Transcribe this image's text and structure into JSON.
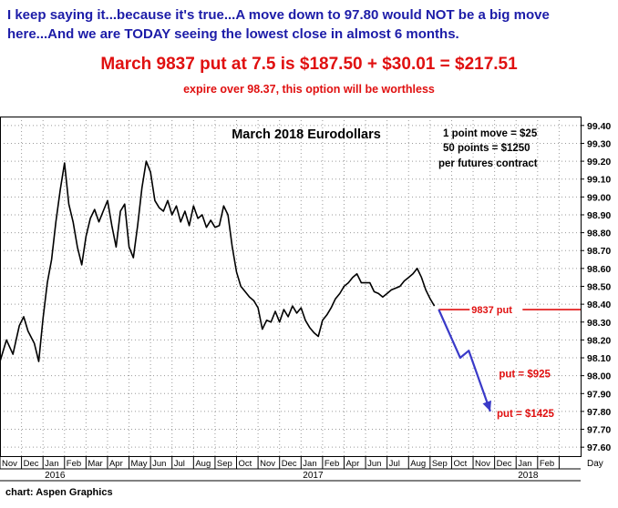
{
  "header": {
    "headline": "I keep saying it...because it's true...A move down to 97.80 would NOT be a big move here...And we are TODAY seeing the lowest close in almost 6 months.",
    "price_line": "March 9837 put at 7.5 is $187.50 + $30.01 = $217.51",
    "expire_note": "expire over 98.37, this option will be worthless"
  },
  "footer": {
    "credit": "chart: Aspen Graphics"
  },
  "colors": {
    "headline": "#1c1ca8",
    "accent_red": "#e01010",
    "projection": "#3a3ac8",
    "price": "#000000",
    "grid": "#9a9a9a"
  },
  "chart_data": {
    "type": "line",
    "title": "March 2018 Eurodollars",
    "notes": [
      "1 point move = $25",
      "50 points = $1250",
      "per futures contract"
    ],
    "y_axis": {
      "ylim": [
        97.55,
        99.45
      ],
      "ticks": [
        "99.40",
        "99.30",
        "99.20",
        "99.10",
        "99.00",
        "98.90",
        "98.80",
        "98.70",
        "98.60",
        "98.50",
        "98.40",
        "98.30",
        "98.20",
        "98.10",
        "98.00",
        "97.90",
        "97.80",
        "97.70",
        "97.60"
      ]
    },
    "x_axis": {
      "months": [
        "Nov",
        "Dec",
        "Jan",
        "Feb",
        "Mar",
        "Apr",
        "May",
        "Jun",
        "Jul",
        "Aug",
        "Sep",
        "Oct",
        "Nov",
        "Dec",
        "Jan",
        "Feb",
        "Apr",
        "Jun",
        "Jul",
        "Aug",
        "Sep",
        "Oct",
        "Nov",
        "Dec",
        "Jan",
        "Feb"
      ],
      "years": [
        "2016",
        "2017",
        "2018"
      ],
      "unit_label": "Day",
      "month_range": [
        0,
        27
      ]
    },
    "series": [
      {
        "points": [
          [
            0.0,
            98.08
          ],
          [
            0.3,
            98.2
          ],
          [
            0.6,
            98.12
          ],
          [
            0.9,
            98.28
          ],
          [
            1.1,
            98.33
          ],
          [
            1.3,
            98.25
          ],
          [
            1.6,
            98.18
          ],
          [
            1.8,
            98.08
          ],
          [
            2.0,
            98.32
          ],
          [
            2.2,
            98.52
          ],
          [
            2.4,
            98.65
          ],
          [
            2.6,
            98.86
          ],
          [
            2.8,
            99.04
          ],
          [
            3.0,
            99.19
          ],
          [
            3.2,
            98.96
          ],
          [
            3.4,
            98.86
          ],
          [
            3.6,
            98.72
          ],
          [
            3.8,
            98.62
          ],
          [
            4.0,
            98.78
          ],
          [
            4.2,
            98.88
          ],
          [
            4.4,
            98.93
          ],
          [
            4.6,
            98.86
          ],
          [
            4.8,
            98.92
          ],
          [
            5.0,
            98.98
          ],
          [
            5.2,
            98.84
          ],
          [
            5.4,
            98.72
          ],
          [
            5.6,
            98.92
          ],
          [
            5.8,
            98.96
          ],
          [
            6.0,
            98.72
          ],
          [
            6.2,
            98.66
          ],
          [
            6.4,
            98.84
          ],
          [
            6.6,
            99.05
          ],
          [
            6.8,
            99.2
          ],
          [
            7.0,
            99.14
          ],
          [
            7.2,
            98.98
          ],
          [
            7.4,
            98.94
          ],
          [
            7.6,
            98.92
          ],
          [
            7.8,
            98.98
          ],
          [
            8.0,
            98.9
          ],
          [
            8.2,
            98.95
          ],
          [
            8.4,
            98.86
          ],
          [
            8.6,
            98.92
          ],
          [
            8.8,
            98.84
          ],
          [
            9.0,
            98.95
          ],
          [
            9.2,
            98.88
          ],
          [
            9.4,
            98.9
          ],
          [
            9.6,
            98.83
          ],
          [
            9.8,
            98.87
          ],
          [
            10.0,
            98.83
          ],
          [
            10.2,
            98.84
          ],
          [
            10.4,
            98.95
          ],
          [
            10.6,
            98.9
          ],
          [
            10.8,
            98.72
          ],
          [
            11.0,
            98.58
          ],
          [
            11.2,
            98.5
          ],
          [
            11.4,
            98.47
          ],
          [
            11.6,
            98.44
          ],
          [
            11.8,
            98.42
          ],
          [
            12.0,
            98.38
          ],
          [
            12.2,
            98.26
          ],
          [
            12.4,
            98.31
          ],
          [
            12.6,
            98.3
          ],
          [
            12.8,
            98.36
          ],
          [
            13.0,
            98.3
          ],
          [
            13.2,
            98.37
          ],
          [
            13.4,
            98.33
          ],
          [
            13.6,
            98.39
          ],
          [
            13.8,
            98.35
          ],
          [
            14.0,
            98.38
          ],
          [
            14.2,
            98.31
          ],
          [
            14.4,
            98.27
          ],
          [
            14.6,
            98.24
          ],
          [
            14.8,
            98.22
          ],
          [
            15.0,
            98.31
          ],
          [
            15.2,
            98.34
          ],
          [
            15.4,
            98.38
          ],
          [
            15.6,
            98.43
          ],
          [
            15.8,
            98.46
          ],
          [
            16.0,
            98.5
          ],
          [
            16.2,
            98.52
          ],
          [
            16.4,
            98.55
          ],
          [
            16.6,
            98.57
          ],
          [
            16.8,
            98.52
          ],
          [
            17.0,
            98.52
          ],
          [
            17.2,
            98.52
          ],
          [
            17.4,
            98.47
          ],
          [
            17.6,
            98.46
          ],
          [
            17.8,
            98.44
          ],
          [
            18.0,
            98.46
          ],
          [
            18.2,
            98.48
          ],
          [
            18.4,
            98.49
          ],
          [
            18.6,
            98.5
          ],
          [
            18.8,
            98.53
          ],
          [
            19.0,
            98.55
          ],
          [
            19.2,
            98.57
          ],
          [
            19.4,
            98.6
          ],
          [
            19.6,
            98.55
          ],
          [
            19.8,
            98.48
          ],
          [
            20.0,
            98.43
          ],
          [
            20.2,
            98.39
          ]
        ]
      }
    ],
    "projection": {
      "points": [
        [
          20.4,
          98.37
        ],
        [
          21.4,
          98.1
        ],
        [
          21.8,
          98.14
        ],
        [
          22.8,
          97.8
        ]
      ]
    },
    "reference_line": {
      "value": 98.37,
      "x_range": [
        20.4,
        27.0
      ],
      "label": "9837 put"
    },
    "annotations": [
      {
        "label": "put = $925",
        "x": 23.2,
        "y": 98.01
      },
      {
        "label": "put = $1425",
        "x": 23.1,
        "y": 97.79
      }
    ]
  }
}
